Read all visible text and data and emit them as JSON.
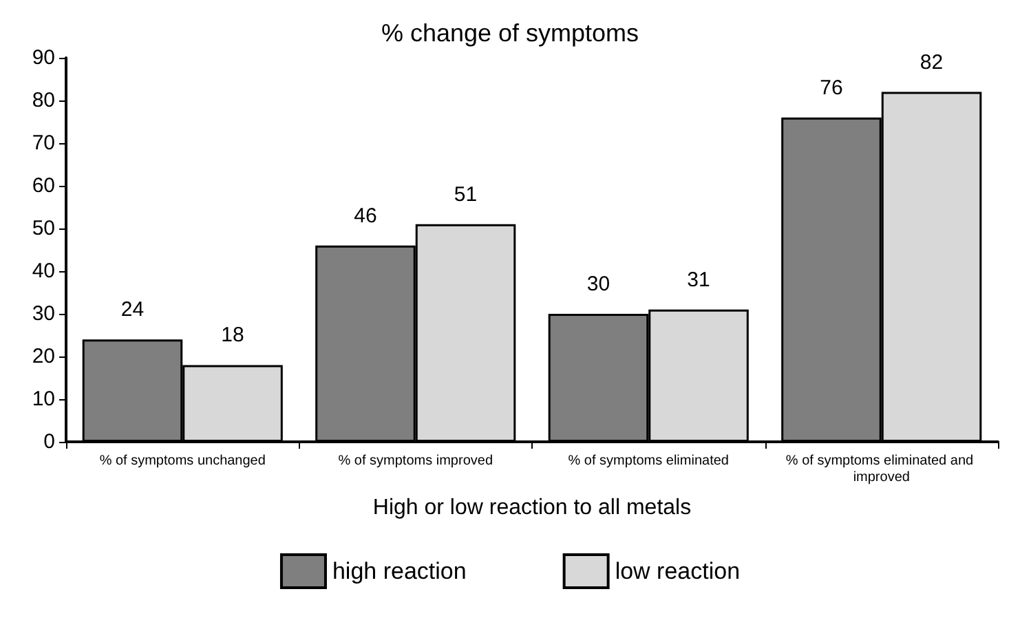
{
  "chart_data": {
    "type": "bar",
    "title": "% change of symptoms",
    "xlabel": "High or low reaction to all metals",
    "categories": [
      "% of symptoms unchanged",
      "% of symptoms improved",
      "% of symptoms eliminated",
      "% of symptoms eliminated and improved"
    ],
    "series": [
      {
        "name": "high reaction",
        "color": "#7f7f7f",
        "values": [
          24,
          46,
          30,
          76
        ]
      },
      {
        "name": "low reaction",
        "color": "#d8d8d8",
        "values": [
          18,
          51,
          31,
          82
        ]
      }
    ],
    "ylim": [
      0,
      90
    ],
    "yticks": [
      0,
      10,
      20,
      30,
      40,
      50,
      60,
      70,
      80,
      90
    ],
    "grid": false,
    "legend": "bottom",
    "data_labels": true
  }
}
